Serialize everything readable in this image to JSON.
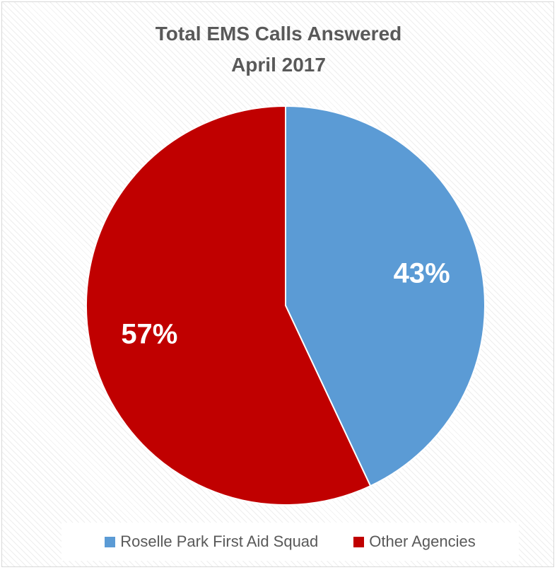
{
  "chart_data": {
    "type": "pie",
    "title": "Total EMS Calls Answered",
    "subtitle": "April 2017",
    "categories": [
      "Roselle Park First Aid Squad",
      "Other Agencies"
    ],
    "values": [
      43,
      57
    ],
    "data_labels": [
      "43%",
      "57%"
    ],
    "colors": [
      "#5b9bd5",
      "#c00000"
    ],
    "legend_position": "bottom"
  }
}
